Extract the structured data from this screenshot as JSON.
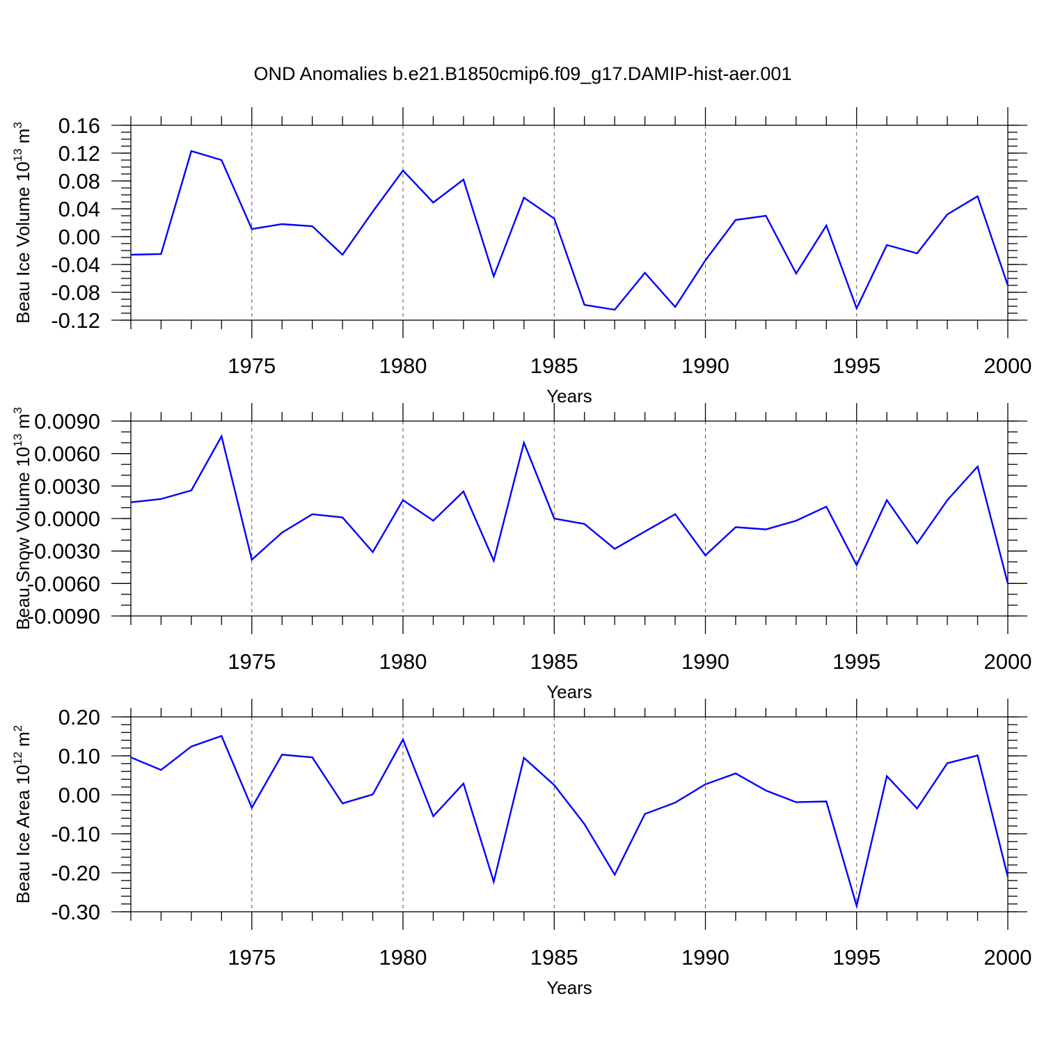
{
  "title": "OND Anomalies b.e21.B1850cmip6.f09_g17.DAMIP-hist-aer.001",
  "colors": {
    "line": "#0000ff",
    "axis": "#000000",
    "grid": "#555555"
  },
  "chart_data": [
    {
      "type": "line",
      "ylabel_main": "Beau Ice Volume 10",
      "ylabel_exp": "13",
      "ylabel_unit": "m",
      "ylabel_unit_exp": "3",
      "xlabel": "Years",
      "xlim": [
        1971,
        2000
      ],
      "ylim": [
        -0.12,
        0.16
      ],
      "xticks": [
        1975,
        1980,
        1985,
        1990,
        1995,
        2000
      ],
      "xtick_labels": [
        "1975",
        "1980",
        "1985",
        "1990",
        "1995",
        "2000"
      ],
      "yticks": [
        -0.12,
        -0.08,
        -0.04,
        0.0,
        0.04,
        0.08,
        0.12,
        0.16
      ],
      "ytick_labels": [
        "-0.12",
        "-0.08",
        "-0.04",
        "0.00",
        "0.04",
        "0.08",
        "0.12",
        "0.16"
      ],
      "yminor_step": 0.01,
      "grid_x": true,
      "x": [
        1971,
        1972,
        1973,
        1974,
        1975,
        1976,
        1977,
        1978,
        1979,
        1980,
        1981,
        1982,
        1983,
        1984,
        1985,
        1986,
        1987,
        1988,
        1989,
        1990,
        1991,
        1992,
        1993,
        1994,
        1995,
        1996,
        1997,
        1998,
        1999,
        2000
      ],
      "series": [
        {
          "values": [
            -0.026,
            -0.025,
            0.123,
            0.11,
            0.011,
            0.018,
            0.015,
            -0.026,
            0.036,
            0.095,
            0.049,
            0.082,
            -0.057,
            0.056,
            0.026,
            -0.098,
            -0.105,
            -0.052,
            -0.101,
            -0.034,
            0.024,
            0.03,
            -0.053,
            0.016,
            -0.103,
            -0.012,
            -0.024,
            0.032,
            0.058,
            -0.07
          ]
        }
      ]
    },
    {
      "type": "line",
      "ylabel_main": "Beau Snow Volume 10",
      "ylabel_exp": "13",
      "ylabel_unit": "m",
      "ylabel_unit_exp": "3",
      "xlabel": "Years",
      "xlim": [
        1971,
        2000
      ],
      "ylim": [
        -0.009,
        0.009
      ],
      "xticks": [
        1975,
        1980,
        1985,
        1990,
        1995,
        2000
      ],
      "xtick_labels": [
        "1975",
        "1980",
        "1985",
        "1990",
        "1995",
        "2000"
      ],
      "yticks": [
        -0.009,
        -0.006,
        -0.003,
        0.0,
        0.003,
        0.006,
        0.009
      ],
      "ytick_labels": [
        "-0.0090",
        "-0.0060",
        "-0.0030",
        "0.0000",
        "0.0030",
        "0.0060",
        "0.0090"
      ],
      "yminor_step": 0.001,
      "grid_x": true,
      "x": [
        1971,
        1972,
        1973,
        1974,
        1975,
        1976,
        1977,
        1978,
        1979,
        1980,
        1981,
        1982,
        1983,
        1984,
        1985,
        1986,
        1987,
        1988,
        1989,
        1990,
        1991,
        1992,
        1993,
        1994,
        1995,
        1996,
        1997,
        1998,
        1999,
        2000
      ],
      "series": [
        {
          "values": [
            0.0015,
            0.0018,
            0.0026,
            0.0076,
            -0.0038,
            -0.0013,
            0.0004,
            0.0001,
            -0.0031,
            0.0017,
            -0.0002,
            0.0025,
            -0.0039,
            0.007,
            0.0,
            -0.0005,
            -0.0028,
            -0.0012,
            0.0004,
            -0.0034,
            -0.0008,
            -0.001,
            -0.0002,
            0.0011,
            -0.0043,
            0.0017,
            -0.0023,
            0.0017,
            0.0048,
            -0.006
          ]
        }
      ]
    },
    {
      "type": "line",
      "ylabel_main": "Beau Ice Area 10",
      "ylabel_exp": "12",
      "ylabel_unit": "m",
      "ylabel_unit_exp": "2",
      "xlabel": "Years",
      "xlim": [
        1971,
        2000
      ],
      "ylim": [
        -0.3,
        0.2
      ],
      "xticks": [
        1975,
        1980,
        1985,
        1990,
        1995,
        2000
      ],
      "xtick_labels": [
        "1975",
        "1980",
        "1985",
        "1990",
        "1995",
        "2000"
      ],
      "yticks": [
        -0.3,
        -0.2,
        -0.1,
        0.0,
        0.1,
        0.2
      ],
      "ytick_labels": [
        "-0.30",
        "-0.20",
        "-0.10",
        "0.00",
        "0.10",
        "0.20"
      ],
      "yminor_step": 0.02,
      "grid_x": true,
      "x": [
        1971,
        1972,
        1973,
        1974,
        1975,
        1976,
        1977,
        1978,
        1979,
        1980,
        1981,
        1982,
        1983,
        1984,
        1985,
        1986,
        1987,
        1988,
        1989,
        1990,
        1991,
        1992,
        1993,
        1994,
        1995,
        1996,
        1997,
        1998,
        1999,
        2000
      ],
      "series": [
        {
          "values": [
            0.096,
            0.064,
            0.124,
            0.151,
            -0.033,
            0.103,
            0.096,
            -0.022,
            0.001,
            0.142,
            -0.055,
            0.029,
            -0.223,
            0.095,
            0.025,
            -0.075,
            -0.205,
            -0.049,
            -0.02,
            0.027,
            0.055,
            0.011,
            -0.019,
            -0.017,
            -0.285,
            0.048,
            -0.035,
            0.081,
            0.101,
            -0.21
          ]
        }
      ]
    }
  ]
}
